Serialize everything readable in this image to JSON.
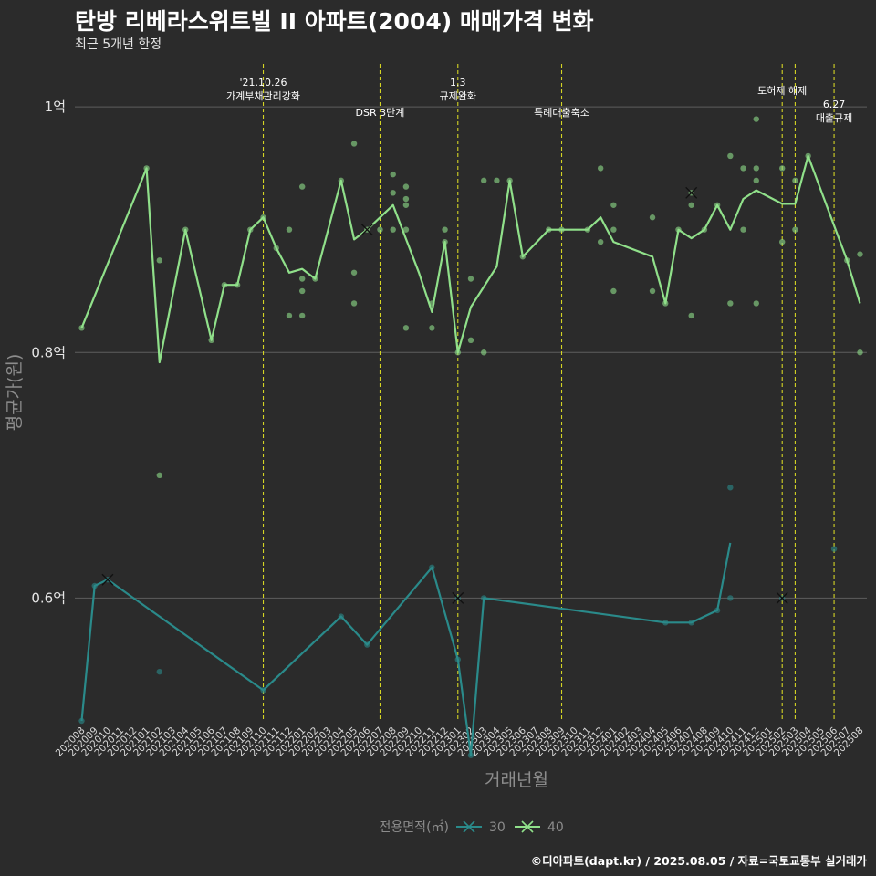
{
  "header": {
    "title": "탄방 리베라스위트빌 II  아파트(2004) 매매가격 변화",
    "subtitle": "최근 5개년 한정"
  },
  "caption": "©디아파트(dapt.kr) / 2025.08.05 / 자료=국토교통부 실거래가",
  "colors": {
    "background": "#2b2b2b",
    "grid": "#5e5e5e",
    "series_30": "#2a8a8a",
    "series_40": "#90e08a",
    "event_line": "#d4d424"
  },
  "chart_data": {
    "type": "line",
    "xlabel": "거래년월",
    "ylabel": "평균가(원)",
    "ylim": [
      0.5,
      1.035
    ],
    "yticks": [
      {
        "value": 0.6,
        "label": "0.6억"
      },
      {
        "value": 0.8,
        "label": "0.8억"
      },
      {
        "value": 1.0,
        "label": "1억"
      }
    ],
    "months": [
      "202008",
      "202009",
      "202010",
      "202011",
      "202012",
      "202101",
      "202102",
      "202103",
      "202104",
      "202105",
      "202106",
      "202107",
      "202108",
      "202109",
      "202110",
      "202111",
      "202112",
      "202201",
      "202202",
      "202203",
      "202204",
      "202205",
      "202206",
      "202207",
      "202208",
      "202209",
      "202210",
      "202211",
      "202212",
      "202301",
      "202302",
      "202303",
      "202304",
      "202305",
      "202306",
      "202307",
      "202308",
      "202309",
      "202310",
      "202311",
      "202312",
      "202401",
      "202402",
      "202403",
      "202404",
      "202405",
      "202406",
      "202407",
      "202408",
      "202409",
      "202410",
      "202411",
      "202412",
      "202501",
      "202502",
      "202503",
      "202504",
      "202505",
      "202506",
      "202507",
      "202508"
    ],
    "events": [
      {
        "x": "202110",
        "label": "'21.10.26\n가계부채관리강화",
        "row": 1
      },
      {
        "x": "202207",
        "label": "DSR 3단계",
        "row": 2
      },
      {
        "x": "202301",
        "label": "1.3\n규제완화",
        "row": 1
      },
      {
        "x": "202309",
        "label": "특례대출축소",
        "row": 2
      },
      {
        "x": "202502",
        "label": "토허제 해제",
        "row": 1
      },
      {
        "x": "202503",
        "label": "",
        "row": 1
      },
      {
        "x": "202506",
        "label": "6.27\n대출규제",
        "row": 2
      }
    ],
    "legend": {
      "title": "전용면적(㎡)",
      "position": "bottom",
      "items": [
        "30",
        "40"
      ]
    },
    "series": [
      {
        "name": "30",
        "color": "#2a8a8a",
        "line": [
          [
            "202008",
            0.5
          ],
          [
            "202009",
            0.61
          ],
          [
            "202010",
            0.615
          ],
          [
            "202110",
            0.525
          ],
          [
            "202204",
            0.585
          ],
          [
            "202206",
            0.562
          ],
          [
            "202211",
            0.625
          ],
          [
            "202301",
            0.55
          ],
          [
            "202302",
            0.472
          ],
          [
            "202303",
            0.6
          ],
          [
            "202405",
            0.58
          ],
          [
            "202407",
            0.58
          ],
          [
            "202409",
            0.59
          ],
          [
            "202410",
            0.645
          ]
        ],
        "points": [
          [
            "202008",
            0.5
          ],
          [
            "202009",
            0.61
          ],
          [
            "202010",
            0.615
          ],
          [
            "202102",
            0.54
          ],
          [
            "202110",
            0.525
          ],
          [
            "202204",
            0.585
          ],
          [
            "202206",
            0.562
          ],
          [
            "202211",
            0.625
          ],
          [
            "202301",
            0.55
          ],
          [
            "202301",
            0.6
          ],
          [
            "202302",
            0.472
          ],
          [
            "202303",
            0.6
          ],
          [
            "202405",
            0.58
          ],
          [
            "202407",
            0.58
          ],
          [
            "202409",
            0.59
          ],
          [
            "202410",
            0.69
          ],
          [
            "202410",
            0.6
          ],
          [
            "202502",
            0.6
          ],
          [
            "202506",
            0.64
          ]
        ],
        "cancelled": [
          [
            "202010",
            0.615
          ],
          [
            "202301",
            0.6
          ],
          [
            "202502",
            0.6
          ]
        ]
      },
      {
        "name": "40",
        "color": "#90e08a",
        "line": [
          [
            "202008",
            0.82
          ],
          [
            "202101",
            0.95
          ],
          [
            "202102",
            0.792
          ],
          [
            "202104",
            0.9
          ],
          [
            "202106",
            0.81
          ],
          [
            "202107",
            0.855
          ],
          [
            "202108",
            0.855
          ],
          [
            "202109",
            0.9
          ],
          [
            "202110",
            0.91
          ],
          [
            "202111",
            0.885
          ],
          [
            "202112",
            0.865
          ],
          [
            "202201",
            0.868
          ],
          [
            "202202",
            0.86
          ],
          [
            "202204",
            0.94
          ],
          [
            "202205",
            0.892
          ],
          [
            "202206",
            0.9
          ],
          [
            "202208",
            0.92
          ],
          [
            "202210",
            0.865
          ],
          [
            "202211",
            0.833
          ],
          [
            "202212",
            0.89
          ],
          [
            "202301",
            0.8
          ],
          [
            "202302",
            0.837
          ],
          [
            "202304",
            0.87
          ],
          [
            "202305",
            0.94
          ],
          [
            "202306",
            0.878
          ],
          [
            "202308",
            0.9
          ],
          [
            "202309",
            0.9
          ],
          [
            "202311",
            0.9
          ],
          [
            "202312",
            0.91
          ],
          [
            "202401",
            0.89
          ],
          [
            "202404",
            0.878
          ],
          [
            "202405",
            0.84
          ],
          [
            "202406",
            0.9
          ],
          [
            "202407",
            0.893
          ],
          [
            "202408",
            0.9
          ],
          [
            "202409",
            0.92
          ],
          [
            "202410",
            0.9
          ],
          [
            "202411",
            0.925
          ],
          [
            "202412",
            0.932
          ],
          [
            "202502",
            0.921
          ],
          [
            "202503",
            0.921
          ],
          [
            "202504",
            0.96
          ],
          [
            "202507",
            0.875
          ],
          [
            "202508",
            0.84
          ]
        ],
        "points": [
          [
            "202008",
            0.82
          ],
          [
            "202101",
            0.95
          ],
          [
            "202102",
            0.875
          ],
          [
            "202102",
            0.7
          ],
          [
            "202104",
            0.9
          ],
          [
            "202106",
            0.81
          ],
          [
            "202107",
            0.855
          ],
          [
            "202108",
            0.855
          ],
          [
            "202109",
            0.9
          ],
          [
            "202110",
            0.91
          ],
          [
            "202111",
            0.885
          ],
          [
            "202112",
            0.9
          ],
          [
            "202112",
            0.83
          ],
          [
            "202201",
            0.935
          ],
          [
            "202201",
            0.86
          ],
          [
            "202201",
            0.85
          ],
          [
            "202201",
            0.83
          ],
          [
            "202202",
            0.86
          ],
          [
            "202204",
            0.94
          ],
          [
            "202205",
            0.97
          ],
          [
            "202205",
            0.865
          ],
          [
            "202205",
            0.84
          ],
          [
            "202206",
            0.9
          ],
          [
            "202207",
            0.9
          ],
          [
            "202208",
            0.945
          ],
          [
            "202208",
            0.93
          ],
          [
            "202208",
            0.9
          ],
          [
            "202209",
            0.935
          ],
          [
            "202209",
            0.925
          ],
          [
            "202209",
            0.92
          ],
          [
            "202209",
            0.9
          ],
          [
            "202209",
            0.82
          ],
          [
            "202211",
            0.84
          ],
          [
            "202211",
            0.82
          ],
          [
            "202212",
            0.9
          ],
          [
            "202212",
            0.89
          ],
          [
            "202301",
            0.8
          ],
          [
            "202302",
            0.86
          ],
          [
            "202302",
            0.81
          ],
          [
            "202303",
            0.94
          ],
          [
            "202303",
            0.8
          ],
          [
            "202304",
            0.94
          ],
          [
            "202305",
            0.94
          ],
          [
            "202306",
            0.878
          ],
          [
            "202308",
            0.9
          ],
          [
            "202309",
            0.9
          ],
          [
            "202311",
            0.9
          ],
          [
            "202312",
            0.95
          ],
          [
            "202312",
            0.89
          ],
          [
            "202401",
            0.92
          ],
          [
            "202401",
            0.9
          ],
          [
            "202401",
            0.85
          ],
          [
            "202404",
            0.91
          ],
          [
            "202404",
            0.85
          ],
          [
            "202405",
            0.84
          ],
          [
            "202406",
            0.9
          ],
          [
            "202407",
            0.93
          ],
          [
            "202407",
            0.92
          ],
          [
            "202407",
            0.83
          ],
          [
            "202408",
            0.9
          ],
          [
            "202409",
            0.92
          ],
          [
            "202410",
            0.96
          ],
          [
            "202410",
            0.84
          ],
          [
            "202411",
            0.95
          ],
          [
            "202411",
            0.9
          ],
          [
            "202412",
            0.99
          ],
          [
            "202412",
            0.95
          ],
          [
            "202412",
            0.94
          ],
          [
            "202412",
            0.84
          ],
          [
            "202502",
            0.95
          ],
          [
            "202502",
            0.89
          ],
          [
            "202503",
            0.94
          ],
          [
            "202503",
            0.9
          ],
          [
            "202504",
            0.96
          ],
          [
            "202507",
            0.875
          ],
          [
            "202508",
            0.88
          ],
          [
            "202508",
            0.8
          ]
        ],
        "cancelled": [
          [
            "202206",
            0.9
          ],
          [
            "202407",
            0.93
          ]
        ]
      }
    ]
  }
}
